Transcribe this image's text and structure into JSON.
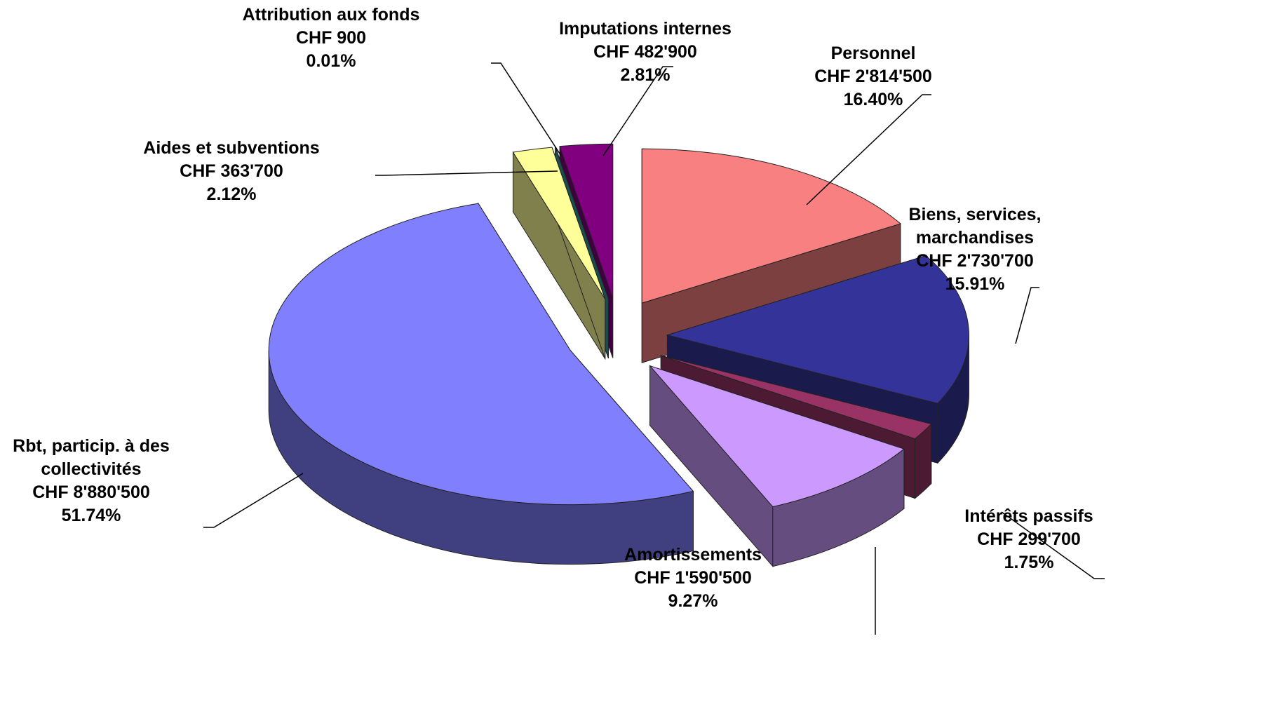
{
  "chart_data": {
    "type": "pie",
    "categories": [
      "Personnel",
      "Biens, services, marchandises",
      "Intérêts passifs",
      "Amortissements",
      "Rbt, particip. à des collectivités",
      "Aides et subventions",
      "Attribution aux fonds",
      "Imputations internes"
    ],
    "values": [
      2814500,
      2730700,
      299700,
      1590500,
      8880500,
      363700,
      900,
      482900
    ],
    "value_labels": [
      "CHF 2'814'500",
      "CHF 2'730'700",
      "CHF 299'700",
      "CHF 1'590'500",
      "CHF 8'880'500",
      "CHF 363'700",
      "CHF 900",
      "CHF 482'900"
    ],
    "percentages": [
      16.4,
      15.91,
      1.75,
      9.27,
      51.74,
      2.12,
      0.01,
      2.81
    ],
    "percent_labels": [
      "16.40%",
      "15.91%",
      "1.75%",
      "9.27%",
      "51.74%",
      "2.12%",
      "0.01%",
      "2.81%"
    ],
    "colors": [
      "#f98080",
      "#333399",
      "#993366",
      "#cc99ff",
      "#8080ff",
      "#ffff99",
      "#339999",
      "#800080"
    ]
  }
}
